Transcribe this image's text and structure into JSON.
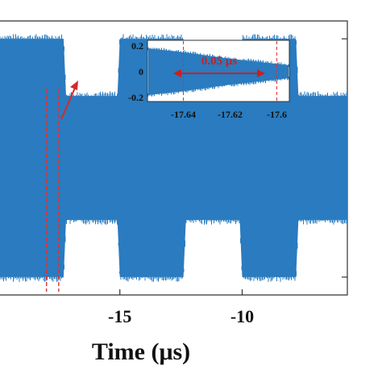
{
  "colors": {
    "signal": "#2a7bbf",
    "marker": "#e03030",
    "axis": "#333333",
    "text": "#111111"
  },
  "chart_data": [
    {
      "type": "area",
      "name": "main",
      "title": "",
      "xlabel": "Time (μs)",
      "ylabel": "",
      "xlim": [
        -19.9,
        -5.7
      ],
      "ylim": [
        -1.15,
        1.15
      ],
      "x_ticks": [
        -15,
        -10
      ],
      "x_tick_labels": [
        "-15",
        "-10"
      ],
      "y_ticks": [
        -1,
        1
      ],
      "grid": false,
      "envelope": {
        "x": [
          -19.9,
          -17.3,
          -17.2,
          -15.1,
          -15.0,
          -12.4,
          -12.3,
          -10.1,
          -10.0,
          -7.8,
          -7.7,
          -5.7
        ],
        "max": [
          1.0,
          1.0,
          0.52,
          0.52,
          1.0,
          1.0,
          0.52,
          0.52,
          1.0,
          1.0,
          0.52,
          0.52
        ],
        "min": [
          -1.0,
          -1.0,
          -0.52,
          -0.52,
          -1.0,
          -1.0,
          -0.52,
          -0.52,
          -1.0,
          -1.0,
          -0.52,
          -0.52
        ]
      },
      "markers": [
        -18.0,
        -17.5
      ],
      "arrow_label": ""
    },
    {
      "type": "area",
      "name": "inset",
      "xlim": [
        -17.655,
        -17.595
      ],
      "ylim": [
        -0.2,
        0.2
      ],
      "x_ticks": [
        -17.64,
        -17.62,
        -17.6
      ],
      "x_tick_labels": [
        "-17.64",
        "-17.62",
        "-17.6"
      ],
      "y_ticks": [
        0.2,
        0,
        -0.2
      ],
      "y_tick_labels": [
        "0.2",
        "0",
        "-0.2"
      ],
      "envelope": {
        "x": [
          -17.655,
          -17.64,
          -17.62,
          -17.6,
          -17.595
        ],
        "max": [
          0.18,
          0.15,
          0.1,
          0.06,
          0.05
        ],
        "min": [
          -0.18,
          -0.15,
          -0.1,
          -0.06,
          -0.05
        ]
      },
      "markers": [
        -17.64,
        -17.6
      ],
      "annotation": "0.05 μs"
    }
  ]
}
